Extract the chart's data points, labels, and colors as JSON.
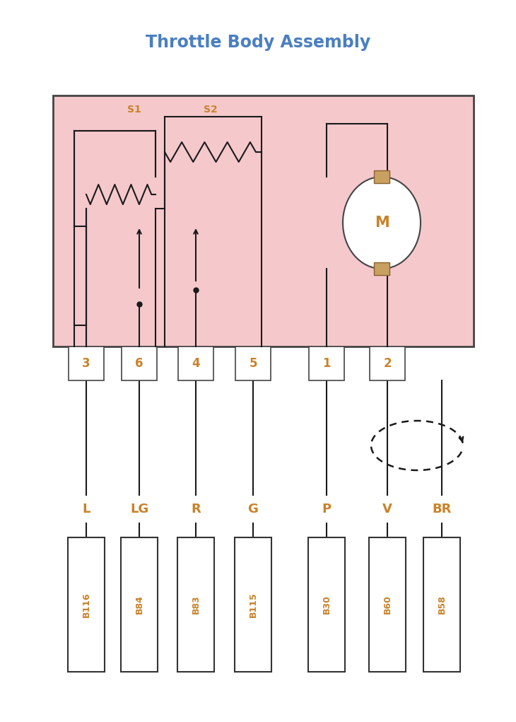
{
  "title": "Throttle Body Assembly",
  "title_color": "#4a7fc1",
  "title_fontsize": 17,
  "bg_color": "#ffffff",
  "box_fill": "#f5c8cc",
  "box_edge": "#444444",
  "pin_fill": "#ffffff",
  "pin_edge": "#444444",
  "connector_fill": "#ffffff",
  "connector_edge": "#333333",
  "wire_color": "#1a1a1a",
  "label_color": "#c8832a",
  "s1_label": "S1",
  "s2_label": "S2",
  "pin_numbers": [
    "3",
    "6",
    "4",
    "5",
    "1",
    "2"
  ],
  "wire_labels": [
    "L",
    "LG",
    "R",
    "G",
    "P",
    "V",
    "BR"
  ],
  "connector_labels": [
    "B116",
    "B84",
    "B83",
    "B115",
    "B30",
    "B60",
    "B58"
  ],
  "motor_label": "M",
  "motor_color": "#c8832a",
  "motor_fill": "#ffffff",
  "lw": 1.5
}
